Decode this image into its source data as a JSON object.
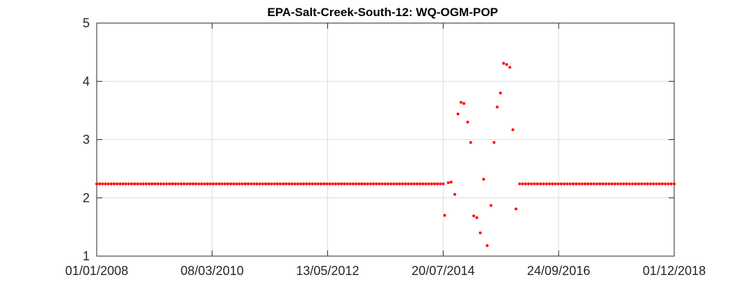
{
  "chart_data": {
    "type": "scatter",
    "title": "EPA-Salt-Creek-South-12: WQ-OGM-POP",
    "xlabel": "",
    "ylabel": "",
    "x_axis_type": "date",
    "xlim": [
      "2008-01-01",
      "2018-12-01"
    ],
    "ylim": [
      1,
      5
    ],
    "x_ticks": [
      "2008-01-01",
      "2010-03-08",
      "2012-05-13",
      "2014-07-20",
      "2016-09-24",
      "2018-12-01"
    ],
    "x_tick_labels": [
      "01/01/2008",
      "08/03/2010",
      "13/05/2012",
      "20/07/2014",
      "24/09/2016",
      "01/12/2018"
    ],
    "y_ticks": [
      1,
      2,
      3,
      4,
      5
    ],
    "y_tick_labels": [
      "1",
      "2",
      "3",
      "4",
      "5"
    ],
    "grid": true,
    "legend": "none",
    "marker_color": "#ff0000",
    "grid_color": "#dcdcdc",
    "axis_color": "#262626",
    "series": [
      {
        "points": [
          {
            "x": "2014-07-30",
            "y": 1.7
          },
          {
            "x": "2014-08-24",
            "y": 2.26
          },
          {
            "x": "2014-09-13",
            "y": 2.27
          },
          {
            "x": "2014-10-08",
            "y": 2.06
          },
          {
            "x": "2014-10-30",
            "y": 3.44
          },
          {
            "x": "2014-11-20",
            "y": 3.64
          },
          {
            "x": "2014-12-10",
            "y": 3.62
          },
          {
            "x": "2015-01-05",
            "y": 3.3
          },
          {
            "x": "2015-01-26",
            "y": 2.95
          },
          {
            "x": "2015-02-16",
            "y": 1.69
          },
          {
            "x": "2015-03-09",
            "y": 1.66
          },
          {
            "x": "2015-04-02",
            "y": 1.4
          },
          {
            "x": "2015-04-25",
            "y": 2.32
          },
          {
            "x": "2015-05-20",
            "y": 1.18
          },
          {
            "x": "2015-06-15",
            "y": 1.87
          },
          {
            "x": "2015-07-06",
            "y": 2.95
          },
          {
            "x": "2015-07-28",
            "y": 3.56
          },
          {
            "x": "2015-08-19",
            "y": 3.8
          },
          {
            "x": "2015-09-10",
            "y": 4.31
          },
          {
            "x": "2015-10-01",
            "y": 4.29
          },
          {
            "x": "2015-10-23",
            "y": 4.24
          },
          {
            "x": "2015-11-13",
            "y": 3.17
          },
          {
            "x": "2015-12-05",
            "y": 1.81
          }
        ],
        "baseline_runs": [
          {
            "y": 2.24,
            "start": "2008-01-01",
            "end": "2014-07-20",
            "count": 120
          },
          {
            "y": 2.24,
            "start": "2015-12-30",
            "end": "2018-12-01",
            "count": 53
          }
        ]
      }
    ]
  }
}
